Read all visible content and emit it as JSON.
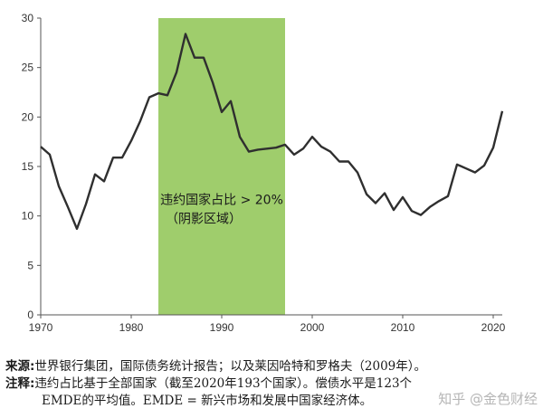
{
  "chart_data": {
    "type": "line",
    "title": "",
    "xlabel": "",
    "ylabel": "",
    "xlim": [
      1970,
      2021
    ],
    "ylim": [
      0,
      30
    ],
    "x_ticks": [
      1970,
      1980,
      1990,
      2000,
      2010,
      2020
    ],
    "y_ticks": [
      0,
      5,
      10,
      15,
      20,
      25,
      30
    ],
    "grid": false,
    "series": [
      {
        "color": "#2f2f2f",
        "x": [
          1970,
          1971,
          1972,
          1973,
          1974,
          1975,
          1976,
          1977,
          1978,
          1979,
          1980,
          1981,
          1982,
          1983,
          1984,
          1985,
          1986,
          1987,
          1988,
          1989,
          1990,
          1991,
          1992,
          1993,
          1994,
          1995,
          1996,
          1997,
          1998,
          1999,
          2000,
          2001,
          2002,
          2003,
          2004,
          2005,
          2006,
          2007,
          2008,
          2009,
          2010,
          2011,
          2012,
          2013,
          2014,
          2015,
          2016,
          2017,
          2018,
          2019,
          2020,
          2021
        ],
        "values": [
          17.0,
          16.2,
          13.0,
          10.9,
          8.7,
          11.2,
          14.2,
          13.5,
          15.9,
          15.9,
          17.6,
          19.6,
          22.0,
          22.4,
          22.2,
          24.5,
          28.4,
          26.0,
          26.0,
          23.5,
          20.5,
          21.6,
          18.0,
          16.5,
          16.7,
          16.8,
          16.9,
          17.2,
          16.2,
          16.8,
          18.0,
          17.0,
          16.5,
          15.5,
          15.5,
          14.4,
          12.2,
          11.3,
          12.3,
          10.6,
          11.9,
          10.5,
          10.1,
          10.9,
          11.5,
          12.0,
          15.2,
          14.8,
          14.4,
          15.1,
          16.9,
          20.6
        ]
      }
    ],
    "shaded_region": {
      "x_start": 1983,
      "x_end": 1997,
      "color": "#9fcd6c"
    },
    "annotation_line1": "违约国家占比 > 20%",
    "annotation_line2": "（阴影区域）",
    "line_color": "#2f2f2f",
    "axis_color": "#555555"
  },
  "notes": {
    "source_label": "来源:",
    "source_text": "世界银行集团，国际债务统计报告；以及莱因哈特和罗格夫（2009年）。",
    "note_label": "注释:",
    "note_text_1": "违约占比基于全部国家（截至2020年193个国家）。偿债水平是123个",
    "note_text_2": "EMDE的平均值。EMDE = 新兴市场和发展中国家经济体。"
  },
  "watermark": "知乎 @金色财经"
}
